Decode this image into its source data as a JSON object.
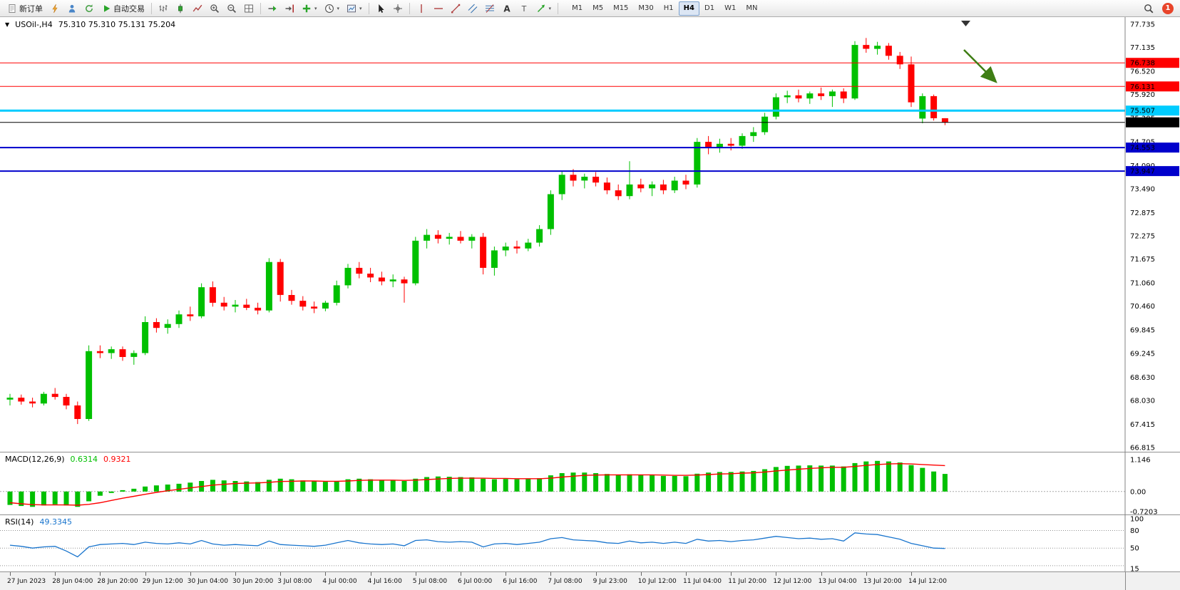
{
  "colors": {
    "up": "#00C000",
    "down": "#FF0000",
    "macd_histogram": "#00C000",
    "macd_signal": "#FF0000",
    "rsi_line": "#1874CD",
    "annotation_arrow": "#3F7E14",
    "bid_line": "#000000"
  },
  "toolbar": {
    "notification_count": "1",
    "timeframes": [
      "M1",
      "M5",
      "M15",
      "M30",
      "H1",
      "H4",
      "D1",
      "W1",
      "MN"
    ],
    "active_timeframe": "H4",
    "items": [
      {
        "type": "button",
        "name": "new-order-button",
        "icon": "doc",
        "label": "新订单"
      },
      {
        "type": "icon",
        "name": "metaeditor-icon",
        "icon": "flash"
      },
      {
        "type": "icon",
        "name": "profiles-icon",
        "icon": "person"
      },
      {
        "type": "icon",
        "name": "refresh-icon",
        "icon": "refresh"
      },
      {
        "type": "button",
        "name": "autotrading-button",
        "icon": "play",
        "label": "自动交易"
      },
      {
        "type": "sep"
      },
      {
        "type": "icon",
        "name": "bar-chart-icon",
        "icon": "bars"
      },
      {
        "type": "icon",
        "name": "candlestick-chart-icon",
        "icon": "candle"
      },
      {
        "type": "icon",
        "name": "line-chart-icon",
        "icon": "linechart"
      },
      {
        "type": "icon",
        "name": "zoom-in-icon",
        "icon": "zoomin"
      },
      {
        "type": "icon",
        "name": "zoom-out-icon",
        "icon": "zoomout"
      },
      {
        "type": "icon",
        "name": "tile-windows-icon",
        "icon": "tile"
      },
      {
        "type": "sep"
      },
      {
        "type": "icon",
        "name": "auto-scroll-icon",
        "icon": "autoscroll"
      },
      {
        "type": "icon",
        "name": "chart-shift-icon",
        "icon": "shift"
      },
      {
        "type": "icon",
        "name": "indicators-icon",
        "icon": "indicator",
        "dropdown": true
      },
      {
        "type": "icon",
        "name": "periods-icon",
        "icon": "clock",
        "dropdown": true
      },
      {
        "type": "icon",
        "name": "templates-icon",
        "icon": "template",
        "dropdown": true
      },
      {
        "type": "sep"
      },
      {
        "type": "icon",
        "name": "cursor-icon",
        "icon": "cursor"
      },
      {
        "type": "icon",
        "name": "crosshair-icon",
        "icon": "crosshair"
      },
      {
        "type": "sep"
      },
      {
        "type": "icon",
        "name": "vertical-line-icon",
        "icon": "vline"
      },
      {
        "type": "icon",
        "name": "horizontal-line-icon",
        "icon": "hline"
      },
      {
        "type": "icon",
        "name": "trendline-icon",
        "icon": "trendline"
      },
      {
        "type": "icon",
        "name": "equidistant-channel-icon",
        "icon": "channel"
      },
      {
        "type": "icon",
        "name": "fibonacci-icon",
        "icon": "fibo"
      },
      {
        "type": "icon",
        "name": "text-icon",
        "icon": "text"
      },
      {
        "type": "icon",
        "name": "text-label-icon",
        "icon": "label"
      },
      {
        "type": "icon",
        "name": "arrows-icon",
        "icon": "shapes",
        "dropdown": true
      },
      {
        "type": "sep"
      }
    ]
  },
  "chart": {
    "collapse_icon": "▼"
  },
  "chart_data": {
    "type": "candlestick",
    "title": "USOil-,H4",
    "ohlc_text": "75.310 75.310 75.131 75.204",
    "ohlc_current": {
      "open": "75.310",
      "high": "75.310",
      "low": "75.131",
      "close": "75.204"
    },
    "y_range": [
      66.815,
      77.735
    ],
    "y_ticks": [
      "77.735",
      "77.135",
      "76.520",
      "75.920",
      "75.305",
      "74.705",
      "74.090",
      "73.490",
      "72.875",
      "72.275",
      "71.675",
      "71.060",
      "70.460",
      "69.845",
      "69.245",
      "68.630",
      "68.030",
      "67.415",
      "66.815"
    ],
    "x_labels": [
      "27 Jun 2023",
      "28 Jun 04:00",
      "28 Jun 20:00",
      "29 Jun 12:00",
      "30 Jun 04:00",
      "30 Jun 20:00",
      "3 Jul 08:00",
      "4 Jul 00:00",
      "4 Jul 16:00",
      "5 Jul 08:00",
      "6 Jul 00:00",
      "6 Jul 16:00",
      "7 Jul 08:00",
      "9 Jul 23:00",
      "10 Jul 12:00",
      "11 Jul 04:00",
      "11 Jul 20:00",
      "12 Jul 12:00",
      "13 Jul 04:00",
      "13 Jul 20:00",
      "14 Jul 12:00"
    ],
    "hlines": [
      {
        "value": 76.738,
        "label": "76.738",
        "color": "#FF0000",
        "width": 1
      },
      {
        "value": 76.131,
        "label": "76.131",
        "color": "#FF0000",
        "width": 1
      },
      {
        "value": 75.507,
        "label": "75.507",
        "color": "#00CCFF",
        "width": 3
      },
      {
        "value": 74.553,
        "label": "74.553",
        "color": "#0000CC",
        "width": 2
      },
      {
        "value": 73.947,
        "label": "73.947",
        "color": "#0000CC",
        "width": 2
      }
    ],
    "bid": {
      "value": 75.204,
      "label": "75.204"
    },
    "candles": [
      [
        68.05,
        68.2,
        67.9,
        68.1
      ],
      [
        68.1,
        68.18,
        67.92,
        68.0
      ],
      [
        68.0,
        68.1,
        67.85,
        67.95
      ],
      [
        67.95,
        68.25,
        67.9,
        68.2
      ],
      [
        68.2,
        68.35,
        68.05,
        68.12
      ],
      [
        68.12,
        68.2,
        67.8,
        67.9
      ],
      [
        67.9,
        68.0,
        67.42,
        67.55
      ],
      [
        67.55,
        69.45,
        67.5,
        69.3
      ],
      [
        69.3,
        69.45,
        69.12,
        69.25
      ],
      [
        69.25,
        69.42,
        69.1,
        69.35
      ],
      [
        69.35,
        69.42,
        69.05,
        69.15
      ],
      [
        69.15,
        69.32,
        68.95,
        69.25
      ],
      [
        69.25,
        70.2,
        69.2,
        70.05
      ],
      [
        70.05,
        70.15,
        69.78,
        69.9
      ],
      [
        69.9,
        70.12,
        69.75,
        70.0
      ],
      [
        70.0,
        70.35,
        69.9,
        70.25
      ],
      [
        70.25,
        70.45,
        70.08,
        70.2
      ],
      [
        70.2,
        71.05,
        70.15,
        70.95
      ],
      [
        70.95,
        71.1,
        70.45,
        70.55
      ],
      [
        70.55,
        70.7,
        70.35,
        70.45
      ],
      [
        70.45,
        70.62,
        70.3,
        70.5
      ],
      [
        70.5,
        70.65,
        70.36,
        70.42
      ],
      [
        70.42,
        70.55,
        70.25,
        70.35
      ],
      [
        70.35,
        71.7,
        70.3,
        71.6
      ],
      [
        71.6,
        71.68,
        70.58,
        70.75
      ],
      [
        70.75,
        70.88,
        70.5,
        70.6
      ],
      [
        70.6,
        70.72,
        70.35,
        70.45
      ],
      [
        70.45,
        70.58,
        70.28,
        70.4
      ],
      [
        70.4,
        70.6,
        70.33,
        70.55
      ],
      [
        70.55,
        71.12,
        70.48,
        71.0
      ],
      [
        71.0,
        71.55,
        70.92,
        71.45
      ],
      [
        71.45,
        71.6,
        71.18,
        71.3
      ],
      [
        71.3,
        71.45,
        71.08,
        71.2
      ],
      [
        71.2,
        71.35,
        71.0,
        71.1
      ],
      [
        71.1,
        71.28,
        70.95,
        71.15
      ],
      [
        71.15,
        71.22,
        70.55,
        71.05
      ],
      [
        71.05,
        72.25,
        71.0,
        72.15
      ],
      [
        72.15,
        72.45,
        71.95,
        72.3
      ],
      [
        72.3,
        72.42,
        72.08,
        72.2
      ],
      [
        72.2,
        72.35,
        72.05,
        72.25
      ],
      [
        72.25,
        72.4,
        72.08,
        72.15
      ],
      [
        72.15,
        72.32,
        71.95,
        72.25
      ],
      [
        72.25,
        72.35,
        71.28,
        71.45
      ],
      [
        71.45,
        72.0,
        71.25,
        71.9
      ],
      [
        71.9,
        72.1,
        71.75,
        72.0
      ],
      [
        72.0,
        72.15,
        71.82,
        71.95
      ],
      [
        71.95,
        72.2,
        71.88,
        72.1
      ],
      [
        72.1,
        72.55,
        72.0,
        72.45
      ],
      [
        72.45,
        73.45,
        72.3,
        73.35
      ],
      [
        73.35,
        73.95,
        73.2,
        73.85
      ],
      [
        73.85,
        74.0,
        73.55,
        73.7
      ],
      [
        73.7,
        73.88,
        73.5,
        73.8
      ],
      [
        73.8,
        73.92,
        73.55,
        73.65
      ],
      [
        73.65,
        73.78,
        73.35,
        73.45
      ],
      [
        73.45,
        73.6,
        73.2,
        73.3
      ],
      [
        73.3,
        74.2,
        73.22,
        73.6
      ],
      [
        73.6,
        73.75,
        73.4,
        73.5
      ],
      [
        73.5,
        73.68,
        73.3,
        73.6
      ],
      [
        73.6,
        73.72,
        73.35,
        73.45
      ],
      [
        73.45,
        73.8,
        73.38,
        73.7
      ],
      [
        73.7,
        73.85,
        73.48,
        73.6
      ],
      [
        73.6,
        74.8,
        73.52,
        74.7
      ],
      [
        74.7,
        74.85,
        74.38,
        74.55
      ],
      [
        74.55,
        74.78,
        74.42,
        74.65
      ],
      [
        74.65,
        74.8,
        74.48,
        74.6
      ],
      [
        74.6,
        74.92,
        74.52,
        74.85
      ],
      [
        74.85,
        75.08,
        74.7,
        74.95
      ],
      [
        74.95,
        75.45,
        74.88,
        75.35
      ],
      [
        75.35,
        75.95,
        75.28,
        75.85
      ],
      [
        75.85,
        76.02,
        75.7,
        75.9
      ],
      [
        75.9,
        76.05,
        75.72,
        75.82
      ],
      [
        75.82,
        76.0,
        75.68,
        75.95
      ],
      [
        75.95,
        76.1,
        75.78,
        75.88
      ],
      [
        75.88,
        76.05,
        75.6,
        76.0
      ],
      [
        76.0,
        76.08,
        75.7,
        75.82
      ],
      [
        75.82,
        77.3,
        75.78,
        77.2
      ],
      [
        77.2,
        77.38,
        77.0,
        77.1
      ],
      [
        77.1,
        77.28,
        76.95,
        77.18
      ],
      [
        77.18,
        77.25,
        76.82,
        76.92
      ],
      [
        76.92,
        77.02,
        76.58,
        76.7
      ],
      [
        76.7,
        76.9,
        75.6,
        75.72
      ],
      [
        75.3,
        75.95,
        75.18,
        75.88
      ],
      [
        75.88,
        75.92,
        75.25,
        75.31
      ],
      [
        75.31,
        75.31,
        75.131,
        75.204
      ]
    ],
    "indicators": {
      "macd": {
        "label": "MACD(12,26,9)",
        "main_value": "0.6314",
        "signal_value": "0.9321",
        "y_range": [
          -0.7203,
          1.146
        ],
        "y_ticks": [
          "1.146",
          "0.00",
          "-0.7203"
        ],
        "histogram": [
          -0.48,
          -0.52,
          -0.55,
          -0.5,
          -0.46,
          -0.5,
          -0.55,
          -0.35,
          -0.15,
          -0.05,
          0.05,
          0.1,
          0.18,
          0.22,
          0.25,
          0.28,
          0.32,
          0.38,
          0.42,
          0.4,
          0.38,
          0.36,
          0.34,
          0.42,
          0.46,
          0.44,
          0.4,
          0.37,
          0.35,
          0.38,
          0.44,
          0.46,
          0.44,
          0.42,
          0.4,
          0.38,
          0.46,
          0.52,
          0.54,
          0.53,
          0.52,
          0.51,
          0.46,
          0.44,
          0.45,
          0.44,
          0.45,
          0.48,
          0.58,
          0.66,
          0.68,
          0.68,
          0.66,
          0.63,
          0.6,
          0.62,
          0.6,
          0.58,
          0.56,
          0.56,
          0.55,
          0.64,
          0.68,
          0.7,
          0.7,
          0.72,
          0.74,
          0.8,
          0.88,
          0.92,
          0.93,
          0.94,
          0.93,
          0.93,
          0.9,
          1.02,
          1.08,
          1.1,
          1.08,
          1.04,
          0.95,
          0.85,
          0.72,
          0.6314
        ],
        "signal": [
          -0.4,
          -0.44,
          -0.47,
          -0.48,
          -0.48,
          -0.48,
          -0.49,
          -0.46,
          -0.4,
          -0.32,
          -0.24,
          -0.17,
          -0.1,
          -0.03,
          0.03,
          0.08,
          0.13,
          0.18,
          0.23,
          0.26,
          0.29,
          0.3,
          0.31,
          0.33,
          0.36,
          0.37,
          0.38,
          0.38,
          0.37,
          0.37,
          0.38,
          0.4,
          0.41,
          0.41,
          0.41,
          0.4,
          0.41,
          0.43,
          0.45,
          0.47,
          0.48,
          0.48,
          0.48,
          0.47,
          0.47,
          0.46,
          0.46,
          0.46,
          0.48,
          0.52,
          0.55,
          0.58,
          0.59,
          0.6,
          0.6,
          0.6,
          0.6,
          0.6,
          0.59,
          0.58,
          0.58,
          0.59,
          0.61,
          0.63,
          0.64,
          0.66,
          0.67,
          0.7,
          0.74,
          0.77,
          0.8,
          0.83,
          0.85,
          0.87,
          0.87,
          0.9,
          0.94,
          0.97,
          0.99,
          1.0,
          0.99,
          0.97,
          0.95,
          0.9321
        ]
      },
      "rsi": {
        "label": "RSI(14)",
        "value_text": "49.3345",
        "y_range": [
          15,
          100
        ],
        "y_ticks": [
          "100",
          "80",
          "50",
          "15"
        ],
        "levels": [
          80,
          50,
          20
        ],
        "values": [
          55,
          53,
          50,
          52,
          53,
          45,
          35,
          52,
          56,
          57,
          58,
          56,
          60,
          58,
          57,
          59,
          57,
          63,
          57,
          55,
          56,
          55,
          54,
          62,
          56,
          55,
          54,
          53,
          55,
          59,
          63,
          59,
          57,
          56,
          57,
          54,
          63,
          64,
          61,
          60,
          61,
          60,
          52,
          57,
          58,
          56,
          58,
          60,
          66,
          68,
          64,
          63,
          62,
          59,
          58,
          62,
          59,
          60,
          58,
          60,
          58,
          65,
          62,
          63,
          61,
          63,
          64,
          67,
          70,
          68,
          66,
          67,
          65,
          66,
          62,
          76,
          74,
          73,
          69,
          65,
          58,
          54,
          50,
          49.33
        ]
      }
    }
  }
}
